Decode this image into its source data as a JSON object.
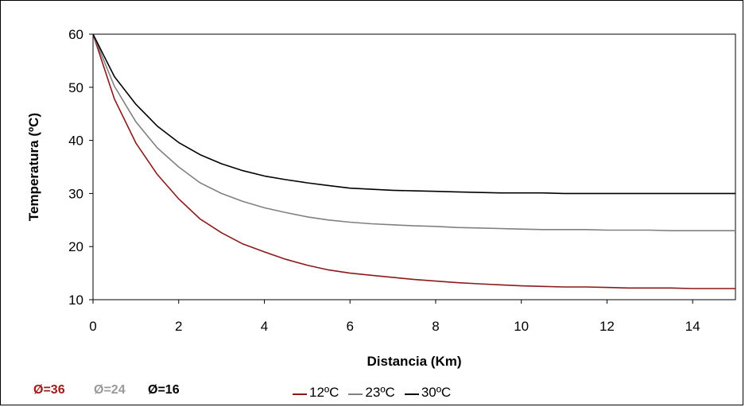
{
  "chart_data": {
    "type": "line",
    "xlabel": "Distancia (Km)",
    "ylabel": "Temperatura (ºC)",
    "xlim": [
      0,
      15
    ],
    "ylim": [
      10,
      60
    ],
    "xticks": [
      "0",
      "2",
      "4",
      "6",
      "8",
      "10",
      "12",
      "14"
    ],
    "yticks": [
      "10",
      "20",
      "30",
      "40",
      "50",
      "60"
    ],
    "grid": false,
    "legend_position": "bottom",
    "x": [
      0,
      0.5,
      1,
      1.5,
      2,
      2.5,
      3,
      3.5,
      4,
      4.5,
      5,
      5.5,
      6,
      6.5,
      7,
      7.5,
      8,
      8.5,
      9,
      9.5,
      10,
      10.5,
      11,
      11.5,
      12,
      12.5,
      13,
      13.5,
      14,
      14.5,
      15
    ],
    "series": [
      {
        "name": "12ºC",
        "color": "#8b1a1a",
        "values": [
          60,
          47.8,
          39.5,
          33.6,
          29.0,
          25.2,
          22.6,
          20.5,
          19.0,
          17.6,
          16.5,
          15.6,
          15.0,
          14.6,
          14.2,
          13.8,
          13.5,
          13.2,
          13.0,
          12.8,
          12.6,
          12.5,
          12.4,
          12.4,
          12.3,
          12.2,
          12.2,
          12.2,
          12.1,
          12.1,
          12.1
        ]
      },
      {
        "name": "23ºC",
        "color": "#808080",
        "values": [
          60,
          50.2,
          43.5,
          38.6,
          35.0,
          32.0,
          30.0,
          28.5,
          27.3,
          26.4,
          25.6,
          25.0,
          24.6,
          24.3,
          24.1,
          23.9,
          23.8,
          23.6,
          23.5,
          23.4,
          23.3,
          23.2,
          23.2,
          23.2,
          23.1,
          23.1,
          23.1,
          23.0,
          23.0,
          23.0,
          23.0
        ]
      },
      {
        "name": "30ºC",
        "color": "#000000",
        "values": [
          60,
          52.0,
          46.8,
          42.7,
          39.6,
          37.3,
          35.6,
          34.3,
          33.3,
          32.6,
          32.0,
          31.5,
          31.0,
          30.8,
          30.6,
          30.5,
          30.4,
          30.3,
          30.2,
          30.1,
          30.1,
          30.1,
          30.0,
          30.0,
          30.0,
          30.0,
          30.0,
          30.0,
          30.0,
          30.0,
          30.0
        ]
      }
    ]
  },
  "notes": [
    {
      "text": "Ø=36",
      "color": "#9e1b1b"
    },
    {
      "text": "Ø=24",
      "color": "#9a9a9a"
    },
    {
      "text": "Ø=16",
      "color": "#000000"
    }
  ]
}
